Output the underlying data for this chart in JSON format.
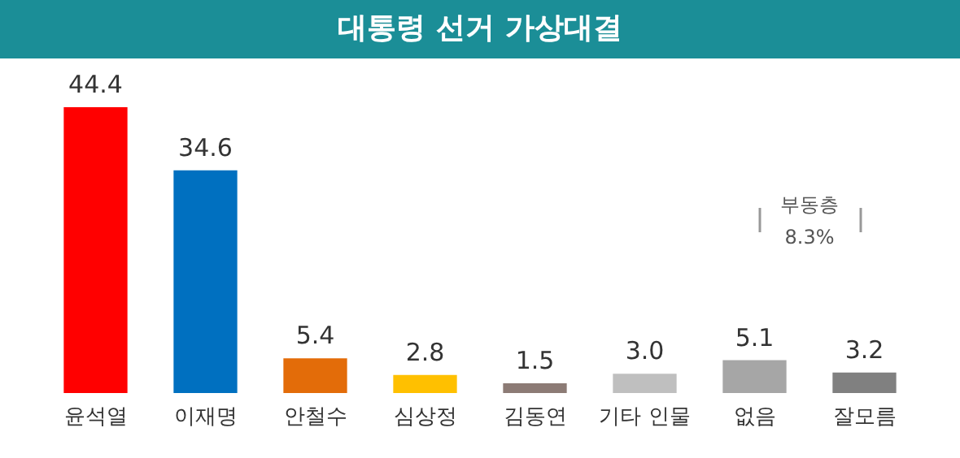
{
  "chart_data": {
    "type": "bar",
    "title": "대통령 선거 가상대결",
    "categories": [
      "윤석열",
      "이재명",
      "안철수",
      "심상정",
      "김동연",
      "기타 인물",
      "없음",
      "잘모름"
    ],
    "values": [
      44.4,
      34.6,
      5.4,
      2.8,
      1.5,
      3.0,
      5.1,
      3.2
    ],
    "colors": [
      "#ff0000",
      "#0070c0",
      "#e36c09",
      "#ffc000",
      "#8c7b75",
      "#bfbfbf",
      "#a6a6a6",
      "#808080"
    ],
    "value_labels": [
      "44.4",
      "34.6",
      "5.4",
      "2.8",
      "1.5",
      "3.0",
      "5.1",
      "3.2"
    ],
    "annotations": [
      "부동층 8.3%"
    ]
  }
}
